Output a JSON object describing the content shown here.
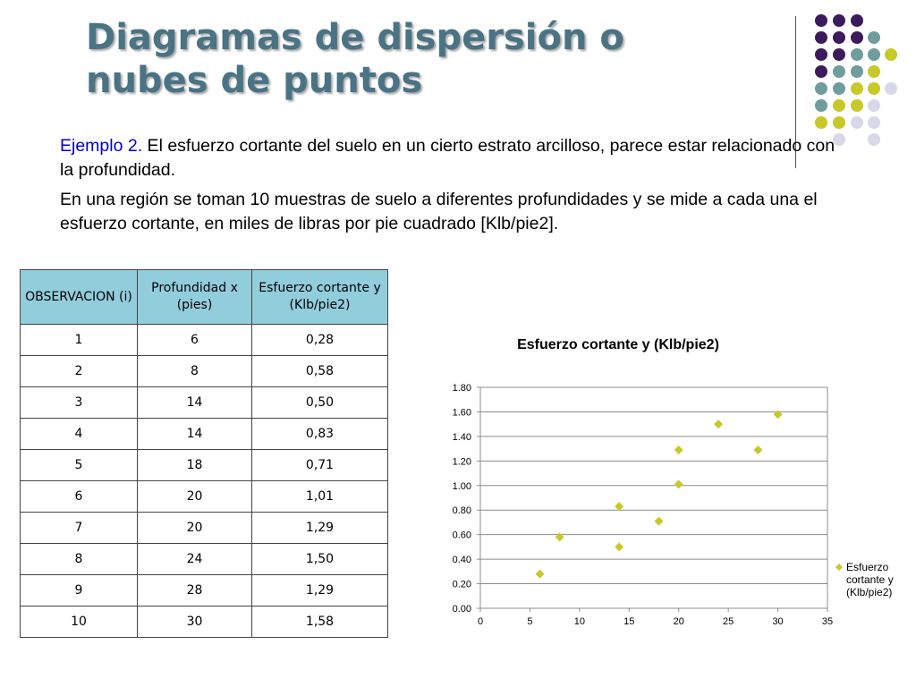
{
  "slide": {
    "title_line1": "Diagramas de dispersión o",
    "title_line2": "nubes de puntos",
    "example_label": "Ejemplo 2.",
    "example_text": " El esfuerzo cortante del suelo en un cierto estrato arcilloso, parece estar relacionado con la profundidad.",
    "paragraph2": "En una región se toman 10 muestras de suelo a diferentes profundidades y se mide a cada una el esfuerzo cortante, en miles de libras por pie cuadrado [Klb/pie2]."
  },
  "colors": {
    "title": "#4a7384",
    "example_label": "#0000cc",
    "table_header": "#92cddc",
    "marker": "#c8c828",
    "dot_purple": "#3d1a5b",
    "dot_teal": "#6f9c9c",
    "dot_yellow": "#c8c828",
    "dot_lavender": "#d8d8e8"
  },
  "table": {
    "headers": [
      "OBSERVACION (i)",
      "Profundidad x (pies)",
      "Esfuerzo cortante y (Klb/pie2)"
    ],
    "rows": [
      [
        "1",
        "6",
        "0,28"
      ],
      [
        "2",
        "8",
        "0,58"
      ],
      [
        "3",
        "14",
        "0,50"
      ],
      [
        "4",
        "14",
        "0,83"
      ],
      [
        "5",
        "18",
        "0,71"
      ],
      [
        "6",
        "20",
        "1,01"
      ],
      [
        "7",
        "20",
        "1,29"
      ],
      [
        "8",
        "24",
        "1,50"
      ],
      [
        "9",
        "28",
        "1,29"
      ],
      [
        "10",
        "30",
        "1,58"
      ]
    ]
  },
  "chart_data": {
    "type": "scatter",
    "title": "Esfuerzo cortante y (Klb/pie2)",
    "xlabel": "",
    "ylabel": "",
    "x": [
      6,
      8,
      14,
      14,
      18,
      20,
      20,
      24,
      28,
      30
    ],
    "series": [
      {
        "name": "Esfuerzo cortante y (Klb/pie2)",
        "values": [
          0.28,
          0.58,
          0.5,
          0.83,
          0.71,
          1.01,
          1.29,
          1.5,
          1.29,
          1.58
        ]
      }
    ],
    "xlim": [
      0,
      35
    ],
    "ylim": [
      0,
      1.8
    ],
    "xticks": [
      "0",
      "5",
      "10",
      "15",
      "20",
      "25",
      "30",
      "35"
    ],
    "yticks": [
      "0.00",
      "0.20",
      "0.40",
      "0.60",
      "0.80",
      "1.00",
      "1.20",
      "1.40",
      "1.60",
      "1.80"
    ],
    "legend_position": "right",
    "legend_label_lines": [
      "Esfuerzo",
      "cortante y",
      "(Klb/pie2)"
    ],
    "grid": "horizontal"
  }
}
